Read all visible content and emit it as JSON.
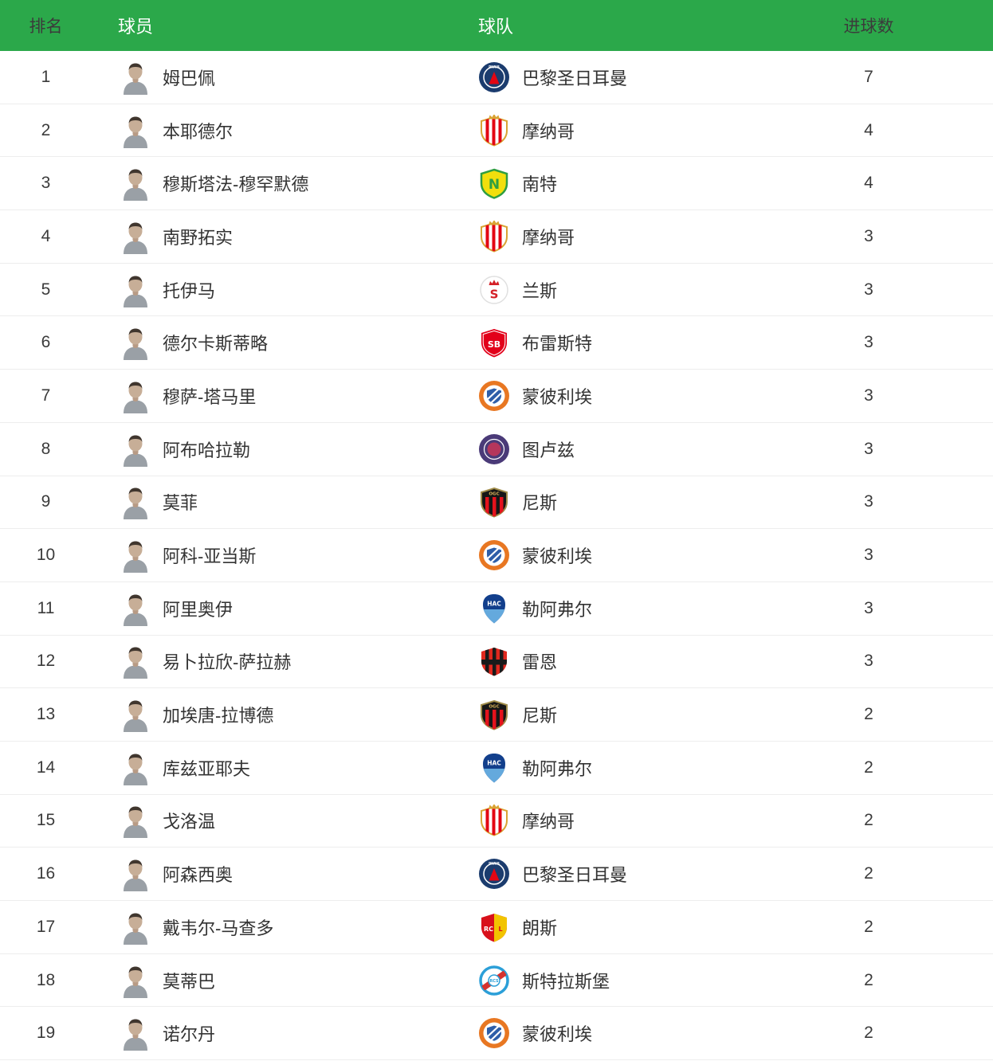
{
  "theme": {
    "header_bg": "#2ba84a",
    "header_text": "#ffffff",
    "row_bg": "#ffffff",
    "separator": "#ededed",
    "text": "#333333",
    "number": "#3b3b3b"
  },
  "table": {
    "columns": [
      {
        "key": "rank",
        "label": "排名"
      },
      {
        "key": "player",
        "label": "球员"
      },
      {
        "key": "team",
        "label": "球队"
      },
      {
        "key": "goals",
        "label": "进球数"
      }
    ],
    "rows": [
      {
        "rank": "1",
        "player": "姆巴佩",
        "team": "巴黎圣日耳曼",
        "goals": "7"
      },
      {
        "rank": "2",
        "player": "本耶德尔",
        "team": "摩纳哥",
        "goals": "4"
      },
      {
        "rank": "3",
        "player": "穆斯塔法-穆罕默德",
        "team": "南特",
        "goals": "4"
      },
      {
        "rank": "4",
        "player": "南野拓实",
        "team": "摩纳哥",
        "goals": "3"
      },
      {
        "rank": "5",
        "player": "托伊马",
        "team": "兰斯",
        "goals": "3"
      },
      {
        "rank": "6",
        "player": "德尔卡斯蒂略",
        "team": "布雷斯特",
        "goals": "3"
      },
      {
        "rank": "7",
        "player": "穆萨-塔马里",
        "team": "蒙彼利埃",
        "goals": "3"
      },
      {
        "rank": "8",
        "player": "阿布哈拉勒",
        "team": "图卢兹",
        "goals": "3"
      },
      {
        "rank": "9",
        "player": "莫菲",
        "team": "尼斯",
        "goals": "3"
      },
      {
        "rank": "10",
        "player": "阿科-亚当斯",
        "team": "蒙彼利埃",
        "goals": "3"
      },
      {
        "rank": "11",
        "player": "阿里奥伊",
        "team": "勒阿弗尔",
        "goals": "3"
      },
      {
        "rank": "12",
        "player": "易卜拉欣-萨拉赫",
        "team": "雷恩",
        "goals": "3"
      },
      {
        "rank": "13",
        "player": "加埃唐-拉博德",
        "team": "尼斯",
        "goals": "2"
      },
      {
        "rank": "14",
        "player": "库兹亚耶夫",
        "team": "勒阿弗尔",
        "goals": "2"
      },
      {
        "rank": "15",
        "player": "戈洛温",
        "team": "摩纳哥",
        "goals": "2"
      },
      {
        "rank": "16",
        "player": "阿森西奥",
        "team": "巴黎圣日耳曼",
        "goals": "2"
      },
      {
        "rank": "17",
        "player": "戴韦尔-马查多",
        "team": "朗斯",
        "goals": "2"
      },
      {
        "rank": "18",
        "player": "莫蒂巴",
        "team": "斯特拉斯堡",
        "goals": "2"
      },
      {
        "rank": "19",
        "player": "诺尔丹",
        "team": "蒙彼利埃",
        "goals": "2"
      }
    ]
  },
  "teams": {
    "巴黎圣日耳曼": {
      "style": "psg",
      "primary": "#1b3c6e",
      "secondary": "#ffffff",
      "accent": "#e30613",
      "label": "PARIS",
      "label_color": "#ffffff"
    },
    "摩纳哥": {
      "style": "monaco",
      "primary": "#ffffff",
      "secondary": "#d9a434",
      "accent": "#e30613"
    },
    "南特": {
      "style": "nantes",
      "primary": "#f2df0d",
      "secondary": "#2f9e41",
      "label": "N",
      "label_color": "#2f9e41"
    },
    "兰斯": {
      "style": "reims",
      "primary": "#ffffff",
      "secondary": "#d42027",
      "border": "#e0e0e0",
      "label": "S",
      "label_color": "#d42027"
    },
    "布雷斯特": {
      "style": "brest",
      "primary": "#e2001a",
      "secondary": "#ffffff",
      "label": "SB",
      "label_color": "#ffffff"
    },
    "蒙彼利埃": {
      "style": "montpellier",
      "primary": "#e87722",
      "secondary": "#ffffff",
      "accent": "#2e5ea8"
    },
    "图卢兹": {
      "style": "toulouse",
      "primary": "#4a3a78",
      "secondary": "#ffffff",
      "accent": "#b5365c"
    },
    "尼斯": {
      "style": "nice",
      "primary": "#161616",
      "secondary": "#a08c4a",
      "accent": "#e4121c",
      "label": "OGC",
      "label_color": "#d9b45a"
    },
    "勒阿弗尔": {
      "style": "lehavre",
      "primary": "#123f8c",
      "secondary": "#64a9dd",
      "label": "HAC",
      "label_color": "#ffffff"
    },
    "雷恩": {
      "style": "rennes",
      "primary": "#e0281e",
      "secondary": "#1a1a1a"
    },
    "朗斯": {
      "style": "lens",
      "primary": "#d8101b",
      "secondary": "#f2c400",
      "label": "RCL",
      "label_color": "#ffffff"
    },
    "斯特拉斯堡": {
      "style": "strasbourg",
      "primary": "#ffffff",
      "secondary": "#2b9fd8",
      "accent": "#d6322e",
      "label": "RCS",
      "label_color": "#2b9fd8"
    }
  }
}
